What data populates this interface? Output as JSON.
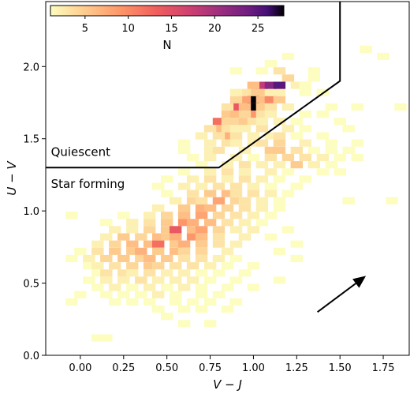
{
  "chart_data": {
    "type": "heatmap",
    "title": "",
    "xlabel": "V − J",
    "ylabel": "U − V",
    "xlim": [
      -0.2,
      1.9
    ],
    "ylim": [
      0.0,
      2.45
    ],
    "x_ticks": [
      "0.00",
      "0.25",
      "0.50",
      "0.75",
      "1.00",
      "1.25",
      "1.50",
      "1.75"
    ],
    "x_tick_values": [
      0.0,
      0.25,
      0.5,
      0.75,
      1.0,
      1.25,
      1.5,
      1.75
    ],
    "y_ticks": [
      "0.0",
      "0.5",
      "1.0",
      "1.5",
      "2.0"
    ],
    "y_tick_values": [
      0.0,
      0.5,
      1.0,
      1.5,
      2.0
    ],
    "grid": false,
    "colorscale": "magma_r",
    "colorbar": {
      "label": "N",
      "ticks": [
        "5",
        "10",
        "15",
        "20",
        "25"
      ],
      "tick_values": [
        5,
        10,
        15,
        20,
        25
      ],
      "range": [
        1,
        28
      ],
      "placement": "top-left"
    },
    "bin_width": 0.07,
    "bin_height": 0.05,
    "cells": [
      [
        1.75,
        2.07,
        1
      ],
      [
        1.65,
        2.12,
        1
      ],
      [
        1.2,
        2.07,
        1
      ],
      [
        1.1,
        2.02,
        1
      ],
      [
        1.35,
        1.97,
        1
      ],
      [
        1.05,
        1.97,
        1
      ],
      [
        0.9,
        1.97,
        1
      ],
      [
        1.15,
        1.97,
        3
      ],
      [
        1.2,
        1.92,
        4
      ],
      [
        1.35,
        1.92,
        1
      ],
      [
        1.25,
        1.87,
        2
      ],
      [
        1.3,
        1.87,
        1
      ],
      [
        1.4,
        1.82,
        1
      ],
      [
        1.3,
        1.82,
        1
      ],
      [
        1.45,
        1.72,
        1
      ],
      [
        1.6,
        1.72,
        1
      ],
      [
        1.85,
        1.72,
        1
      ],
      [
        1.05,
        1.82,
        5
      ],
      [
        1.0,
        1.82,
        5
      ],
      [
        1.1,
        1.82,
        2
      ],
      [
        1.15,
        1.82,
        2
      ],
      [
        1.05,
        1.87,
        18
      ],
      [
        1.1,
        1.87,
        22
      ],
      [
        1.15,
        1.87,
        25
      ],
      [
        1.0,
        1.87,
        6
      ],
      [
        0.95,
        1.82,
        3
      ],
      [
        0.9,
        1.82,
        2
      ],
      [
        1.0,
        1.77,
        28
      ],
      [
        0.95,
        1.77,
        8
      ],
      [
        1.05,
        1.77,
        6
      ],
      [
        1.1,
        1.77,
        10
      ],
      [
        1.15,
        1.77,
        5
      ],
      [
        0.9,
        1.77,
        4
      ],
      [
        0.9,
        1.72,
        14
      ],
      [
        1.0,
        1.72,
        28
      ],
      [
        0.95,
        1.72,
        6
      ],
      [
        1.05,
        1.72,
        5
      ],
      [
        1.1,
        1.72,
        3
      ],
      [
        0.85,
        1.72,
        3
      ],
      [
        1.2,
        1.72,
        2
      ],
      [
        0.85,
        1.67,
        5
      ],
      [
        1.0,
        1.67,
        9
      ],
      [
        0.9,
        1.67,
        6
      ],
      [
        0.95,
        1.67,
        4
      ],
      [
        1.05,
        1.67,
        3
      ],
      [
        1.1,
        1.67,
        2
      ],
      [
        1.3,
        1.67,
        1
      ],
      [
        1.4,
        1.67,
        1
      ],
      [
        0.8,
        1.62,
        12
      ],
      [
        0.85,
        1.62,
        4
      ],
      [
        0.9,
        1.62,
        4
      ],
      [
        0.95,
        1.62,
        5
      ],
      [
        1.0,
        1.62,
        3
      ],
      [
        1.05,
        1.62,
        2
      ],
      [
        1.15,
        1.62,
        2
      ],
      [
        1.25,
        1.62,
        1
      ],
      [
        1.5,
        1.62,
        1
      ],
      [
        0.8,
        1.57,
        6
      ],
      [
        0.75,
        1.57,
        3
      ],
      [
        0.85,
        1.57,
        3
      ],
      [
        0.9,
        1.57,
        2
      ],
      [
        0.95,
        1.57,
        2
      ],
      [
        1.05,
        1.57,
        3
      ],
      [
        1.2,
        1.57,
        2
      ],
      [
        1.3,
        1.57,
        1
      ],
      [
        1.55,
        1.57,
        1
      ],
      [
        0.85,
        1.52,
        7
      ],
      [
        0.7,
        1.52,
        2
      ],
      [
        0.8,
        1.52,
        3
      ],
      [
        0.9,
        1.52,
        3
      ],
      [
        1.0,
        1.52,
        2
      ],
      [
        1.1,
        1.52,
        2
      ],
      [
        1.15,
        1.52,
        3
      ],
      [
        1.25,
        1.52,
        1
      ],
      [
        1.4,
        1.52,
        1
      ],
      [
        0.6,
        1.47,
        1
      ],
      [
        0.75,
        1.47,
        2
      ],
      [
        0.85,
        1.47,
        3
      ],
      [
        0.9,
        1.47,
        2
      ],
      [
        1.0,
        1.47,
        2
      ],
      [
        1.05,
        1.47,
        3
      ],
      [
        1.15,
        1.47,
        4
      ],
      [
        1.3,
        1.47,
        2
      ],
      [
        1.45,
        1.47,
        1
      ],
      [
        1.6,
        1.47,
        1
      ],
      [
        0.6,
        1.42,
        1
      ],
      [
        0.75,
        1.42,
        2
      ],
      [
        0.8,
        1.42,
        3
      ],
      [
        0.95,
        1.42,
        2
      ],
      [
        1.1,
        1.42,
        5
      ],
      [
        1.15,
        1.42,
        5
      ],
      [
        1.25,
        1.42,
        3
      ],
      [
        1.35,
        1.42,
        1
      ],
      [
        1.45,
        1.42,
        1
      ],
      [
        1.55,
        1.42,
        1
      ],
      [
        0.65,
        1.37,
        1
      ],
      [
        0.75,
        1.37,
        2
      ],
      [
        0.9,
        1.37,
        2
      ],
      [
        1.0,
        1.37,
        1
      ],
      [
        1.1,
        1.37,
        3
      ],
      [
        1.2,
        1.37,
        4
      ],
      [
        1.3,
        1.37,
        3
      ],
      [
        1.4,
        1.37,
        2
      ],
      [
        1.5,
        1.37,
        1
      ],
      [
        1.6,
        1.37,
        1
      ],
      [
        0.7,
        1.32,
        1
      ],
      [
        0.85,
        1.32,
        2
      ],
      [
        0.95,
        1.32,
        3
      ],
      [
        1.05,
        1.32,
        2
      ],
      [
        1.15,
        1.32,
        2
      ],
      [
        1.25,
        1.32,
        5
      ],
      [
        1.35,
        1.32,
        2
      ],
      [
        1.45,
        1.32,
        1
      ],
      [
        0.6,
        1.27,
        1
      ],
      [
        0.75,
        1.27,
        2
      ],
      [
        0.85,
        1.27,
        3
      ],
      [
        0.95,
        1.27,
        2
      ],
      [
        1.1,
        1.27,
        2
      ],
      [
        1.2,
        1.27,
        1
      ],
      [
        1.4,
        1.27,
        1
      ],
      [
        1.5,
        1.27,
        1
      ],
      [
        0.5,
        1.22,
        1
      ],
      [
        0.65,
        1.22,
        2
      ],
      [
        0.75,
        1.22,
        3
      ],
      [
        0.85,
        1.22,
        2
      ],
      [
        0.95,
        1.22,
        3
      ],
      [
        1.05,
        1.22,
        2
      ],
      [
        1.15,
        1.22,
        1
      ],
      [
        1.3,
        1.22,
        1
      ],
      [
        0.45,
        1.17,
        1
      ],
      [
        0.6,
        1.17,
        2
      ],
      [
        0.7,
        1.17,
        2
      ],
      [
        0.8,
        1.17,
        3
      ],
      [
        0.9,
        1.17,
        3
      ],
      [
        1.0,
        1.17,
        2
      ],
      [
        1.1,
        1.17,
        1
      ],
      [
        1.25,
        1.17,
        1
      ],
      [
        0.5,
        1.12,
        1
      ],
      [
        0.65,
        1.12,
        3
      ],
      [
        0.75,
        1.12,
        5
      ],
      [
        0.85,
        1.12,
        6
      ],
      [
        0.9,
        1.12,
        3
      ],
      [
        1.0,
        1.12,
        3
      ],
      [
        1.1,
        1.12,
        2
      ],
      [
        1.2,
        1.12,
        1
      ],
      [
        0.55,
        1.07,
        2
      ],
      [
        0.65,
        1.07,
        4
      ],
      [
        0.7,
        1.07,
        3
      ],
      [
        0.8,
        1.07,
        8
      ],
      [
        0.9,
        1.07,
        4
      ],
      [
        0.95,
        1.07,
        3
      ],
      [
        1.05,
        1.07,
        2
      ],
      [
        1.15,
        1.07,
        1
      ],
      [
        1.55,
        1.07,
        1
      ],
      [
        -0.05,
        0.97,
        1
      ],
      [
        0.45,
        1.02,
        2
      ],
      [
        0.6,
        1.02,
        5
      ],
      [
        0.7,
        1.02,
        7
      ],
      [
        0.75,
        1.02,
        6
      ],
      [
        0.85,
        1.02,
        4
      ],
      [
        0.95,
        1.02,
        3
      ],
      [
        1.05,
        1.02,
        2
      ],
      [
        1.15,
        1.02,
        1
      ],
      [
        1.8,
        1.07,
        1
      ],
      [
        0.25,
        0.97,
        1
      ],
      [
        0.4,
        0.97,
        2
      ],
      [
        0.5,
        0.97,
        4
      ],
      [
        0.6,
        0.97,
        6
      ],
      [
        0.7,
        0.97,
        8
      ],
      [
        0.8,
        0.97,
        4
      ],
      [
        0.9,
        0.97,
        3
      ],
      [
        1.0,
        0.97,
        2
      ],
      [
        1.1,
        0.97,
        1
      ],
      [
        0.15,
        0.92,
        1
      ],
      [
        0.3,
        0.92,
        2
      ],
      [
        0.4,
        0.92,
        3
      ],
      [
        0.5,
        0.92,
        5
      ],
      [
        0.6,
        0.92,
        9
      ],
      [
        0.65,
        0.92,
        7
      ],
      [
        0.75,
        0.92,
        6
      ],
      [
        0.85,
        0.92,
        3
      ],
      [
        0.95,
        0.92,
        2
      ],
      [
        1.05,
        0.92,
        1
      ],
      [
        0.2,
        0.87,
        2
      ],
      [
        0.3,
        0.87,
        2
      ],
      [
        0.4,
        0.87,
        4
      ],
      [
        0.5,
        0.87,
        5
      ],
      [
        0.55,
        0.87,
        14
      ],
      [
        0.65,
        0.87,
        6
      ],
      [
        0.7,
        0.87,
        8
      ],
      [
        0.8,
        0.87,
        4
      ],
      [
        0.9,
        0.87,
        2
      ],
      [
        1.0,
        0.87,
        2
      ],
      [
        1.2,
        0.87,
        1
      ],
      [
        0.15,
        0.82,
        2
      ],
      [
        0.25,
        0.82,
        5
      ],
      [
        0.35,
        0.82,
        4
      ],
      [
        0.45,
        0.82,
        6
      ],
      [
        0.5,
        0.82,
        5
      ],
      [
        0.55,
        0.82,
        7
      ],
      [
        0.65,
        0.82,
        9
      ],
      [
        0.7,
        0.82,
        6
      ],
      [
        0.8,
        0.82,
        3
      ],
      [
        0.95,
        0.82,
        2
      ],
      [
        1.1,
        0.82,
        1
      ],
      [
        0.1,
        0.77,
        2
      ],
      [
        0.2,
        0.77,
        4
      ],
      [
        0.3,
        0.77,
        6
      ],
      [
        0.4,
        0.77,
        6
      ],
      [
        0.45,
        0.77,
        12
      ],
      [
        0.55,
        0.77,
        5
      ],
      [
        0.6,
        0.77,
        7
      ],
      [
        0.7,
        0.77,
        5
      ],
      [
        0.8,
        0.77,
        3
      ],
      [
        0.9,
        0.77,
        2
      ],
      [
        1.25,
        0.77,
        1
      ],
      [
        0.0,
        0.72,
        1
      ],
      [
        0.1,
        0.72,
        3
      ],
      [
        0.2,
        0.72,
        5
      ],
      [
        0.3,
        0.72,
        5
      ],
      [
        0.35,
        0.72,
        7
      ],
      [
        0.45,
        0.72,
        5
      ],
      [
        0.55,
        0.72,
        6
      ],
      [
        0.6,
        0.72,
        4
      ],
      [
        0.7,
        0.72,
        4
      ],
      [
        0.85,
        0.72,
        2
      ],
      [
        1.15,
        0.72,
        1
      ],
      [
        -0.05,
        0.67,
        1
      ],
      [
        0.05,
        0.67,
        2
      ],
      [
        0.15,
        0.67,
        4
      ],
      [
        0.25,
        0.67,
        5
      ],
      [
        0.35,
        0.67,
        4
      ],
      [
        0.4,
        0.67,
        6
      ],
      [
        0.5,
        0.67,
        5
      ],
      [
        0.6,
        0.67,
        3
      ],
      [
        0.7,
        0.67,
        3
      ],
      [
        0.8,
        0.67,
        2
      ],
      [
        0.9,
        0.67,
        1
      ],
      [
        1.25,
        0.67,
        1
      ],
      [
        0.05,
        0.62,
        1
      ],
      [
        0.1,
        0.62,
        2
      ],
      [
        0.2,
        0.62,
        3
      ],
      [
        0.3,
        0.62,
        4
      ],
      [
        0.4,
        0.62,
        5
      ],
      [
        0.45,
        0.62,
        4
      ],
      [
        0.55,
        0.62,
        3
      ],
      [
        0.65,
        0.62,
        3
      ],
      [
        0.75,
        0.62,
        2
      ],
      [
        0.85,
        0.62,
        1
      ],
      [
        1.0,
        0.62,
        1
      ],
      [
        0.1,
        0.57,
        1
      ],
      [
        0.15,
        0.57,
        3
      ],
      [
        0.25,
        0.57,
        3
      ],
      [
        0.3,
        0.57,
        2
      ],
      [
        0.4,
        0.57,
        3
      ],
      [
        0.5,
        0.57,
        2
      ],
      [
        0.6,
        0.57,
        2
      ],
      [
        0.7,
        0.57,
        1
      ],
      [
        0.8,
        0.57,
        1
      ],
      [
        0.95,
        0.57,
        1
      ],
      [
        0.05,
        0.52,
        1
      ],
      [
        0.15,
        0.52,
        2
      ],
      [
        0.25,
        0.52,
        2
      ],
      [
        0.35,
        0.52,
        3
      ],
      [
        0.45,
        0.52,
        2
      ],
      [
        0.55,
        0.52,
        2
      ],
      [
        0.65,
        0.52,
        2
      ],
      [
        0.75,
        0.52,
        1
      ],
      [
        0.9,
        0.52,
        1
      ],
      [
        1.15,
        0.52,
        1
      ],
      [
        0.1,
        0.47,
        1
      ],
      [
        0.2,
        0.47,
        2
      ],
      [
        0.3,
        0.47,
        1
      ],
      [
        0.4,
        0.47,
        2
      ],
      [
        0.5,
        0.47,
        1
      ],
      [
        0.6,
        0.47,
        2
      ],
      [
        0.7,
        0.47,
        1
      ],
      [
        0.85,
        0.47,
        1
      ],
      [
        1.0,
        0.47,
        1
      ],
      [
        0.0,
        0.42,
        1
      ],
      [
        0.15,
        0.42,
        1
      ],
      [
        0.25,
        0.42,
        1
      ],
      [
        0.35,
        0.42,
        1
      ],
      [
        0.45,
        0.42,
        2
      ],
      [
        0.55,
        0.42,
        1
      ],
      [
        0.7,
        0.42,
        1
      ],
      [
        0.8,
        0.42,
        1
      ],
      [
        -0.05,
        0.37,
        1
      ],
      [
        0.2,
        0.37,
        1
      ],
      [
        0.3,
        0.37,
        1
      ],
      [
        0.4,
        0.37,
        1
      ],
      [
        0.55,
        0.37,
        1
      ],
      [
        0.65,
        0.37,
        1
      ],
      [
        0.75,
        0.37,
        1
      ],
      [
        0.9,
        0.37,
        1
      ],
      [
        0.45,
        0.32,
        1
      ],
      [
        0.6,
        0.32,
        1
      ],
      [
        0.7,
        0.32,
        1
      ],
      [
        0.85,
        0.32,
        1
      ],
      [
        0.5,
        0.27,
        1
      ],
      [
        0.6,
        0.22,
        1
      ],
      [
        0.75,
        0.22,
        1
      ],
      [
        0.1,
        0.12,
        1
      ],
      [
        0.15,
        0.12,
        1
      ]
    ],
    "selection_boundary": [
      [
        -0.2,
        1.3
      ],
      [
        0.8,
        1.3
      ],
      [
        1.5,
        1.9
      ],
      [
        1.5,
        2.45
      ]
    ],
    "regions": [
      {
        "label": "Quiescent",
        "x": -0.17,
        "y": 1.38
      },
      {
        "label": "Star forming",
        "x": -0.17,
        "y": 1.16
      }
    ],
    "arrow": {
      "from": [
        1.37,
        0.3
      ],
      "to": [
        1.65,
        0.55
      ]
    }
  }
}
